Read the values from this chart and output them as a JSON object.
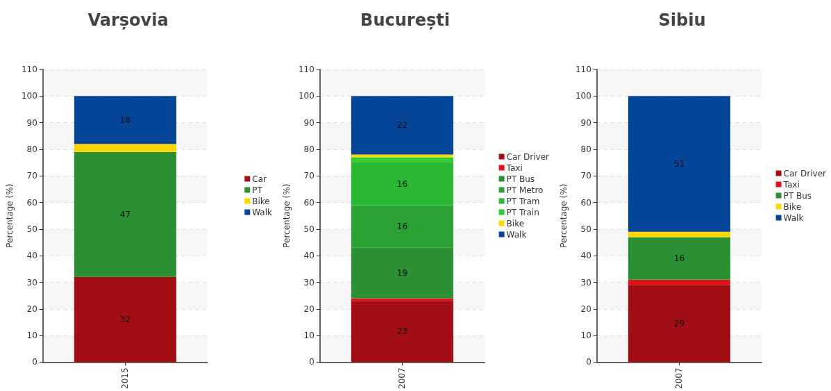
{
  "chart_data": [
    {
      "type": "bar",
      "title": "Varșovia",
      "ylabel": "Percentage (%)",
      "categories": [
        "2015"
      ],
      "stacked": true,
      "ylim": [
        0,
        110
      ],
      "yticks": [
        0,
        10,
        20,
        30,
        40,
        50,
        60,
        70,
        80,
        90,
        100,
        110
      ],
      "grid": "y",
      "legend": "right",
      "series": [
        {
          "name": "Car",
          "color": "#a30e15",
          "values": [
            32
          ],
          "value_labels": [
            "32"
          ]
        },
        {
          "name": "PT",
          "color": "#2b8f33",
          "values": [
            47
          ],
          "value_labels": [
            "47"
          ]
        },
        {
          "name": "Bike",
          "color": "#ffd500",
          "values": [
            3
          ],
          "value_labels": [
            null
          ]
        },
        {
          "name": "Walk",
          "color": "#054598",
          "values": [
            18
          ],
          "value_labels": [
            "18"
          ]
        }
      ]
    },
    {
      "type": "bar",
      "title": "București",
      "ylabel": "Percentage (%)",
      "categories": [
        "2007"
      ],
      "stacked": true,
      "ylim": [
        0,
        110
      ],
      "yticks": [
        0,
        10,
        20,
        30,
        40,
        50,
        60,
        70,
        80,
        90,
        100,
        110
      ],
      "grid": "y",
      "legend": "right",
      "series": [
        {
          "name": "Car Driver",
          "color": "#a30e15",
          "values": [
            23
          ],
          "value_labels": [
            "23"
          ]
        },
        {
          "name": "Taxi",
          "color": "#e01219",
          "values": [
            1
          ],
          "value_labels": [
            null
          ]
        },
        {
          "name": "PT Bus",
          "color": "#2b8f33",
          "values": [
            19
          ],
          "value_labels": [
            "19"
          ]
        },
        {
          "name": "PT Metro",
          "color": "#2ba134",
          "values": [
            16
          ],
          "value_labels": [
            "16"
          ]
        },
        {
          "name": "PT Tram",
          "color": "#2ab833",
          "values": [
            16
          ],
          "value_labels": [
            "16"
          ]
        },
        {
          "name": "PT Train",
          "color": "#33cc33",
          "values": [
            2
          ],
          "value_labels": [
            null
          ]
        },
        {
          "name": "Bike",
          "color": "#ffd500",
          "values": [
            1
          ],
          "value_labels": [
            null
          ]
        },
        {
          "name": "Walk",
          "color": "#054598",
          "values": [
            22
          ],
          "value_labels": [
            "22"
          ]
        }
      ]
    },
    {
      "type": "bar",
      "title": "Sibiu",
      "ylabel": "Percentage (%)",
      "categories": [
        "2007"
      ],
      "stacked": true,
      "ylim": [
        0,
        110
      ],
      "yticks": [
        0,
        10,
        20,
        30,
        40,
        50,
        60,
        70,
        80,
        90,
        100,
        110
      ],
      "grid": "y",
      "legend": "right",
      "series": [
        {
          "name": "Car Driver",
          "color": "#a30e15",
          "values": [
            29
          ],
          "value_labels": [
            "29"
          ]
        },
        {
          "name": "Taxi",
          "color": "#e01219",
          "values": [
            2
          ],
          "value_labels": [
            null
          ]
        },
        {
          "name": "PT Bus",
          "color": "#2b8f33",
          "values": [
            16
          ],
          "value_labels": [
            "16"
          ]
        },
        {
          "name": "Bike",
          "color": "#ffd500",
          "values": [
            2
          ],
          "value_labels": [
            null
          ]
        },
        {
          "name": "Walk",
          "color": "#054598",
          "values": [
            51
          ],
          "value_labels": [
            "51"
          ]
        }
      ]
    }
  ]
}
